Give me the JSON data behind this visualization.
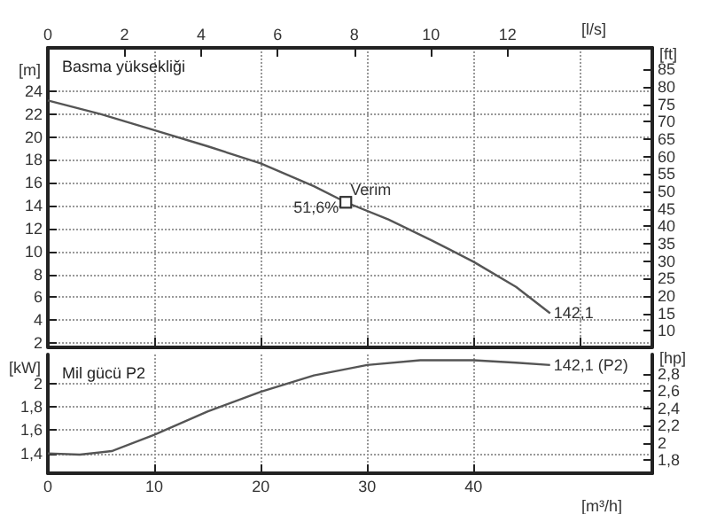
{
  "chart_data": [
    {
      "type": "line",
      "title": "Basma yüksekliği",
      "ylabel": "[m]",
      "y2label": "[ft]",
      "x2label": "[l/s]",
      "grid": true,
      "tick_labels": "y",
      "xlim": [
        0,
        56.8
      ],
      "xticks": [
        0,
        10,
        20,
        30,
        40,
        50
      ],
      "x2lim": [
        0,
        15.78
      ],
      "x2ticks": [
        0,
        2,
        4,
        6,
        8,
        10,
        12
      ],
      "ylim": [
        1.7,
        27.8
      ],
      "yticks": [
        2,
        4,
        6,
        8,
        10,
        12,
        14,
        16,
        18,
        20,
        22,
        24
      ],
      "y2lim": [
        5.58,
        91.2
      ],
      "y2ticks": [
        10,
        15,
        20,
        25,
        30,
        35,
        40,
        45,
        50,
        55,
        60,
        65,
        70,
        75,
        80,
        85
      ],
      "series": [
        {
          "name": "142,1",
          "color": "#555555",
          "x": [
            0,
            5,
            10,
            15,
            20,
            25,
            28,
            32,
            36,
            40,
            44,
            47.2
          ],
          "values": [
            23.2,
            22.0,
            20.6,
            19.2,
            17.7,
            15.7,
            14.3,
            12.8,
            11.0,
            9.1,
            6.9,
            4.6
          ]
        }
      ],
      "annotations": [
        {
          "text": "Verim",
          "x": 28,
          "y": 14.3
        },
        {
          "text": "51,6%",
          "x": 28,
          "y": 14.3
        }
      ]
    },
    {
      "type": "line",
      "title": "Mil gücü P2",
      "xlabel": "[m³/h]",
      "ylabel": "[kW]",
      "y2label": "[hp]",
      "grid": true,
      "xlim": [
        0,
        56.8
      ],
      "xticks": [
        0,
        10,
        20,
        30,
        40
      ],
      "ylim": [
        1.23,
        2.25
      ],
      "yticks": [
        {
          "value": 1.4,
          "label": "1,4"
        },
        {
          "value": 1.6,
          "label": "1,6"
        },
        {
          "value": 1.8,
          "label": "1,8"
        },
        {
          "value": 2,
          "label": "2"
        }
      ],
      "y2lim": [
        1.65,
        3.02
      ],
      "y2ticks": [
        {
          "value": 1.8,
          "label": "1,8"
        },
        {
          "value": 2,
          "label": "2"
        },
        {
          "value": 2.2,
          "label": "2,2"
        },
        {
          "value": 2.4,
          "label": "2,4"
        },
        {
          "value": 2.6,
          "label": "2,6"
        },
        {
          "value": 2.8,
          "label": "2,8"
        }
      ],
      "series": [
        {
          "name": "142,1 (P2)",
          "color": "#555555",
          "x": [
            0,
            3,
            6,
            10,
            15,
            20,
            25,
            30,
            35,
            40,
            44,
            47.2
          ],
          "values": [
            1.4,
            1.39,
            1.42,
            1.56,
            1.76,
            1.93,
            2.07,
            2.16,
            2.2,
            2.2,
            2.18,
            2.16
          ]
        }
      ]
    }
  ]
}
